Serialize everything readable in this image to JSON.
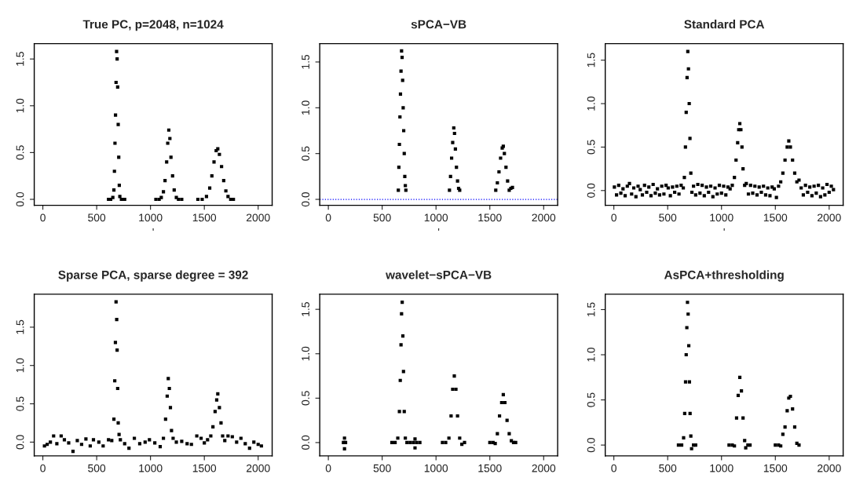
{
  "chart_data": [
    {
      "type": "scatter",
      "title": "True PC, p=2048, n=1024",
      "xlabel": "'",
      "marker": "square",
      "grid": false,
      "xlim": [
        -80,
        2130
      ],
      "ylim": [
        -0.064,
        1.664
      ],
      "xticks": [
        0,
        500,
        1000,
        1500,
        2000
      ],
      "yticks": [
        {
          "value": 0,
          "label": "0.0"
        },
        {
          "value": 0.5,
          "label": "0.5"
        },
        {
          "value": 1,
          "label": "1.0"
        },
        {
          "value": 1.5,
          "label": "1.5"
        }
      ],
      "series": [
        {
          "color": "#000000",
          "x": [
            610,
            630,
            650,
            660,
            665,
            670,
            675,
            680,
            685,
            690,
            695,
            700,
            705,
            710,
            715,
            730,
            750,
            760,
            1050,
            1080,
            1100,
            1120,
            1135,
            1150,
            1160,
            1170,
            1180,
            1190,
            1205,
            1220,
            1240,
            1260,
            1290,
            1440,
            1480,
            1520,
            1550,
            1570,
            1590,
            1610,
            1625,
            1640,
            1660,
            1680,
            1700,
            1720,
            1745,
            1770
          ],
          "values": [
            0,
            0,
            0.02,
            0.1,
            0.3,
            0.6,
            0.9,
            1.25,
            1.58,
            1.5,
            1.2,
            0.8,
            0.45,
            0.15,
            0.03,
            0,
            0,
            0,
            0,
            0,
            0.02,
            0.08,
            0.2,
            0.4,
            0.6,
            0.74,
            0.65,
            0.45,
            0.25,
            0.1,
            0.02,
            0,
            0,
            0,
            0,
            0.03,
            0.12,
            0.25,
            0.4,
            0.52,
            0.54,
            0.48,
            0.35,
            0.2,
            0.09,
            0.03,
            0,
            0
          ]
        }
      ]
    },
    {
      "type": "scatter",
      "title": "sPCA−VB",
      "xlabel": "'",
      "marker": "square",
      "grid": false,
      "xlim": [
        -80,
        2130
      ],
      "ylim": [
        -0.065,
        1.7
      ],
      "xticks": [
        0,
        500,
        1000,
        1500,
        2000
      ],
      "yticks": [
        {
          "value": 0,
          "label": "0.0"
        },
        {
          "value": 0.5,
          "label": "0.5"
        },
        {
          "value": 1,
          "label": "1.0"
        },
        {
          "value": 1.5,
          "label": "1.5"
        }
      ],
      "ref_lines": [
        {
          "axis": "y",
          "value": 0,
          "color": "#0000ff",
          "line_style": "dotted"
        }
      ],
      "series": [
        {
          "color": "#000000",
          "x": [
            650,
            655,
            660,
            665,
            670,
            675,
            680,
            685,
            690,
            695,
            700,
            705,
            710,
            715,
            720,
            1125,
            1135,
            1145,
            1155,
            1165,
            1172,
            1180,
            1190,
            1200,
            1210,
            1220,
            1555,
            1570,
            1585,
            1600,
            1615,
            1625,
            1635,
            1650,
            1665,
            1680,
            1695,
            1710
          ],
          "values": [
            0.1,
            0.35,
            0.6,
            0.9,
            1.15,
            1.4,
            1.62,
            1.55,
            1.3,
            1.0,
            0.75,
            0.5,
            0.25,
            0.15,
            0.1,
            0.1,
            0.25,
            0.45,
            0.62,
            0.78,
            0.72,
            0.55,
            0.35,
            0.2,
            0.12,
            0.1,
            0.1,
            0.18,
            0.3,
            0.45,
            0.56,
            0.58,
            0.5,
            0.35,
            0.2,
            0.1,
            0.12,
            0.13
          ]
        }
      ]
    },
    {
      "type": "scatter",
      "title": "Standard PCA",
      "xlabel": "'",
      "marker": "square",
      "grid": false,
      "xlim": [
        -80,
        2130
      ],
      "ylim": [
        -0.17,
        1.69
      ],
      "xticks": [
        0,
        500,
        1000,
        1500,
        2000
      ],
      "yticks": [
        {
          "value": 0,
          "label": "0.0"
        },
        {
          "value": 0.5,
          "label": "0.5"
        },
        {
          "value": 1,
          "label": "1.0"
        },
        {
          "value": 1.5,
          "label": "1.5"
        }
      ],
      "series": [
        {
          "color": "#000000",
          "x": [
            5,
            25,
            45,
            65,
            85,
            105,
            125,
            145,
            165,
            185,
            205,
            225,
            245,
            265,
            285,
            305,
            325,
            345,
            365,
            385,
            405,
            425,
            445,
            465,
            485,
            505,
            525,
            545,
            565,
            585,
            605,
            625,
            645,
            655,
            665,
            672,
            680,
            687,
            693,
            700,
            707,
            715,
            725,
            740,
            760,
            780,
            800,
            820,
            840,
            860,
            880,
            900,
            920,
            940,
            960,
            980,
            1000,
            1020,
            1040,
            1060,
            1080,
            1100,
            1120,
            1135,
            1150,
            1160,
            1170,
            1180,
            1190,
            1200,
            1215,
            1230,
            1250,
            1270,
            1290,
            1310,
            1330,
            1350,
            1370,
            1390,
            1410,
            1430,
            1450,
            1470,
            1490,
            1510,
            1530,
            1550,
            1570,
            1590,
            1610,
            1625,
            1640,
            1660,
            1680,
            1700,
            1720,
            1740,
            1760,
            1780,
            1800,
            1820,
            1840,
            1860,
            1880,
            1900,
            1920,
            1940,
            1960,
            1980,
            2000,
            2020,
            2040
          ],
          "values": [
            0.04,
            -0.05,
            0.06,
            -0.03,
            0.02,
            -0.06,
            0.05,
            0.08,
            -0.04,
            0.03,
            -0.07,
            0.05,
            0.01,
            -0.05,
            0.06,
            -0.02,
            0.04,
            -0.06,
            0.07,
            -0.03,
            0.02,
            -0.05,
            0.05,
            -0.04,
            0.06,
            0.03,
            -0.06,
            0.04,
            -0.02,
            0.05,
            -0.04,
            0.06,
            0.03,
            0.15,
            0.5,
            0.9,
            1.3,
            1.6,
            1.4,
            1.0,
            0.6,
            0.2,
            -0.02,
            0.05,
            -0.05,
            0.07,
            -0.03,
            0.06,
            -0.06,
            0.04,
            -0.02,
            0.05,
            -0.07,
            0.03,
            -0.04,
            0.06,
            -0.03,
            0.05,
            -0.05,
            0.04,
            0.02,
            0.06,
            0.15,
            0.35,
            0.55,
            0.7,
            0.77,
            0.7,
            0.5,
            0.25,
            0.06,
            0.08,
            -0.04,
            0.06,
            -0.03,
            0.05,
            -0.05,
            0.04,
            -0.02,
            0.05,
            -0.05,
            0.03,
            -0.06,
            0.04,
            0.02,
            -0.08,
            0.05,
            0.1,
            0.2,
            0.35,
            0.5,
            0.57,
            0.5,
            0.35,
            0.2,
            0.1,
            0.12,
            0.03,
            -0.05,
            0.06,
            -0.02,
            0.04,
            -0.06,
            0.05,
            -0.03,
            0.06,
            -0.07,
            0.03,
            -0.05,
            0.07,
            -0.02,
            0.05,
            0.01
          ]
        }
      ]
    },
    {
      "type": "scatter",
      "title": "Sparse PCA, sparse degree = 392",
      "marker": "square",
      "grid": false,
      "xlim": [
        -80,
        2130
      ],
      "ylim": [
        -0.18,
        1.93
      ],
      "xticks": [
        0,
        500,
        1000,
        1500,
        2000
      ],
      "yticks": [
        {
          "value": 0,
          "label": "0.0"
        },
        {
          "value": 0.5,
          "label": "0.5"
        },
        {
          "value": 1,
          "label": "1.0"
        },
        {
          "value": 1.5,
          "label": "1.5"
        }
      ],
      "series": [
        {
          "color": "#000000",
          "x": [
            15,
            40,
            70,
            100,
            130,
            170,
            200,
            240,
            280,
            320,
            360,
            400,
            440,
            470,
            520,
            560,
            610,
            640,
            660,
            668,
            674,
            680,
            686,
            690,
            695,
            700,
            708,
            720,
            760,
            800,
            850,
            900,
            950,
            990,
            1040,
            1090,
            1120,
            1140,
            1155,
            1165,
            1175,
            1185,
            1195,
            1210,
            1240,
            1290,
            1340,
            1380,
            1430,
            1470,
            1500,
            1530,
            1560,
            1580,
            1600,
            1615,
            1625,
            1640,
            1655,
            1670,
            1690,
            1720,
            1760,
            1800,
            1840,
            1880,
            1920,
            1960,
            2000,
            2030
          ],
          "values": [
            -0.05,
            -0.03,
            0.0,
            0.08,
            -0.02,
            0.08,
            0.03,
            -0.01,
            -0.12,
            0.02,
            -0.03,
            0.04,
            -0.05,
            0.03,
            0.0,
            -0.05,
            0.03,
            0.02,
            0.3,
            0.8,
            1.3,
            1.83,
            1.6,
            1.2,
            0.7,
            0.25,
            0.1,
            0.03,
            -0.02,
            -0.08,
            0.05,
            -0.02,
            0.0,
            0.03,
            -0.01,
            -0.06,
            0.05,
            0.3,
            0.6,
            0.83,
            0.7,
            0.45,
            0.15,
            0.05,
            0.0,
            0.01,
            -0.02,
            -0.03,
            0.08,
            0.05,
            -0.01,
            0.03,
            0.08,
            0.2,
            0.4,
            0.55,
            0.63,
            0.45,
            0.25,
            0.08,
            0.02,
            0.08,
            0.07,
            0.0,
            0.05,
            -0.02,
            -0.08,
            0.0,
            -0.03,
            -0.05
          ]
        }
      ]
    },
    {
      "type": "scatter",
      "title": "wavelet−sPCA−VB",
      "marker": "square",
      "grid": false,
      "xlim": [
        -80,
        2130
      ],
      "ylim": [
        -0.15,
        1.67
      ],
      "xticks": [
        0,
        500,
        1000,
        1500,
        2000
      ],
      "yticks": [
        {
          "value": 0,
          "label": "0.0"
        },
        {
          "value": 0.5,
          "label": "0.5"
        },
        {
          "value": 1,
          "label": "1.0"
        },
        {
          "value": 1.5,
          "label": "1.5"
        }
      ],
      "series": [
        {
          "color": "#000000",
          "x": [
            140,
            150,
            150,
            150,
            160,
            590,
            620,
            645,
            660,
            668,
            675,
            680,
            686,
            692,
            698,
            705,
            715,
            730,
            760,
            790,
            805,
            805,
            820,
            850,
            1060,
            1090,
            1120,
            1140,
            1155,
            1170,
            1185,
            1200,
            1220,
            1240,
            1265,
            1500,
            1530,
            1550,
            1570,
            1590,
            1610,
            1625,
            1640,
            1660,
            1680,
            1700,
            1720,
            1740
          ],
          "values": [
            0,
            0.05,
            0,
            -0.07,
            0,
            0,
            0,
            0.05,
            0.35,
            0.7,
            1.1,
            1.45,
            1.58,
            1.2,
            0.8,
            0.35,
            0.05,
            0,
            0,
            0,
            0.04,
            -0.06,
            0,
            0,
            0,
            0,
            0.05,
            0.3,
            0.6,
            0.75,
            0.6,
            0.3,
            0.05,
            -0.02,
            0,
            0,
            0,
            -0.01,
            0.1,
            0.3,
            0.45,
            0.54,
            0.45,
            0.25,
            0.1,
            0.02,
            0,
            0
          ]
        }
      ]
    },
    {
      "type": "scatter",
      "title": "AsPCA+thresholding",
      "marker": "square",
      "grid": false,
      "xlim": [
        -80,
        2130
      ],
      "ylim": [
        -0.12,
        1.67
      ],
      "xticks": [
        0,
        500,
        1000,
        1500,
        2000
      ],
      "yticks": [
        {
          "value": 0,
          "label": "0.0"
        },
        {
          "value": 0.5,
          "label": "0.5"
        },
        {
          "value": 1,
          "label": "1.0"
        },
        {
          "value": 1.5,
          "label": "1.5"
        }
      ],
      "series": [
        {
          "color": "#000000",
          "x": [
            600,
            630,
            648,
            658,
            666,
            672,
            678,
            684,
            690,
            696,
            702,
            708,
            715,
            722,
            740,
            760,
            1070,
            1100,
            1120,
            1140,
            1155,
            1170,
            1185,
            1200,
            1215,
            1225,
            1245,
            1265,
            1500,
            1530,
            1550,
            1570,
            1590,
            1610,
            1625,
            1640,
            1660,
            1680,
            1700,
            1720
          ],
          "values": [
            0,
            0,
            0.08,
            0.35,
            0.7,
            1.0,
            1.3,
            1.58,
            1.45,
            1.1,
            0.7,
            0.35,
            0.1,
            -0.04,
            0,
            0,
            0,
            0,
            -0.01,
            0.3,
            0.55,
            0.75,
            0.6,
            0.3,
            0.05,
            -0.03,
            0,
            0,
            0,
            0,
            -0.01,
            0.12,
            0.2,
            0.38,
            0.52,
            0.54,
            0.4,
            0.2,
            0.02,
            0
          ]
        }
      ]
    }
  ]
}
